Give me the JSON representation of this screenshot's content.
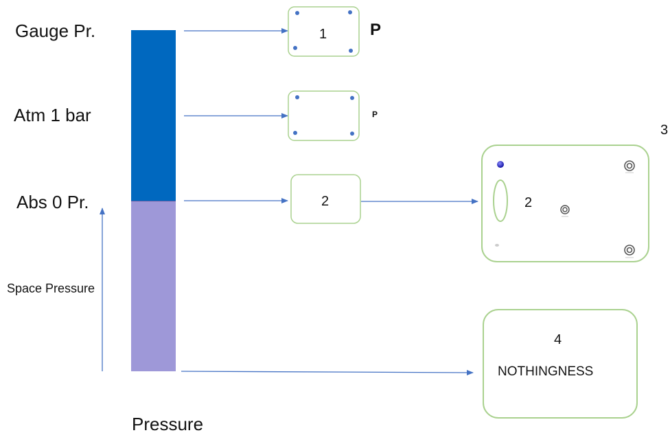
{
  "labels": {
    "gauge": "Gauge Pr.",
    "atm": "Atm 1 bar",
    "abs_zero": "Abs 0 Pr.",
    "space": "Space Pressure",
    "pressure": "Pressure"
  },
  "boxes": {
    "box1": {
      "number": "1",
      "symbol": "P"
    },
    "box1b": {
      "symbol": "P"
    },
    "box2": {
      "number": "2"
    },
    "box3": {
      "number": "3",
      "inner_number": "2"
    },
    "box4": {
      "number": "4",
      "text": "NOTHINGNESS"
    }
  },
  "colors": {
    "bar_top": "#0068bf",
    "bar_bottom": "#9e98d8",
    "arrow": "#4472c4",
    "box_border": "#a9d18e",
    "dot": "#4472c4"
  }
}
